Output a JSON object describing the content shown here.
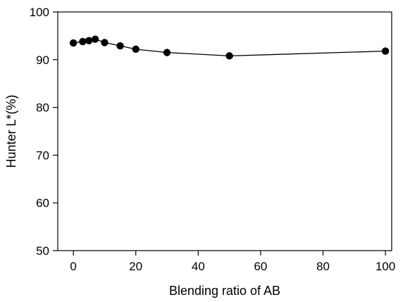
{
  "chart_data": {
    "type": "line",
    "title": "",
    "xlabel": "Blending ratio of AB",
    "ylabel": "Hunter L*(%)",
    "xlim": [
      -5,
      102
    ],
    "ylim": [
      50,
      100
    ],
    "xticks": [
      0,
      20,
      40,
      60,
      80,
      100
    ],
    "yticks": [
      50,
      60,
      70,
      80,
      90,
      100
    ],
    "grid": false,
    "legend": "none",
    "series": [
      {
        "x": [
          0,
          3,
          5,
          7,
          10,
          15,
          20,
          30,
          50,
          100
        ],
        "y": [
          93.5,
          93.8,
          94.0,
          94.3,
          93.6,
          92.9,
          92.2,
          91.5,
          90.8,
          91.8
        ],
        "marker": "filled-circle",
        "color": "#000000"
      }
    ]
  }
}
